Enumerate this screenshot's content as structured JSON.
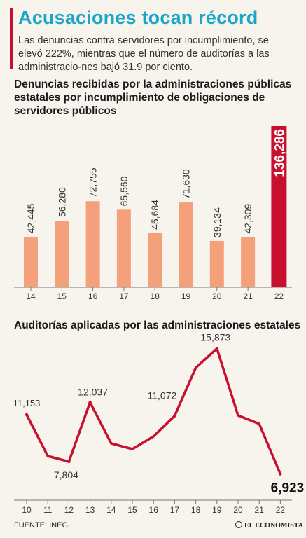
{
  "title": "Acusaciones tocan récord",
  "subtitle": "Las denuncias contra servidores por incumplimiento, se elevó 222%, mientras que el número de auditorías a las administracio-nes bajó 31.9 por ciento.",
  "footer": {
    "source": "FUENTE: INEGI",
    "logo": "EL ECONOMISTA"
  },
  "colors": {
    "title": "#1ba6c9",
    "bar": "#f4a07a",
    "highlight": "#c8102e",
    "line": "#c8102e"
  },
  "chart_data": [
    {
      "type": "bar",
      "title": "Denuncias recibidas por la administraciones públicas estatales por incumplimiento de obligaciones de servidores públicos",
      "categories": [
        "14",
        "15",
        "16",
        "17",
        "18",
        "19",
        "20",
        "21",
        "22"
      ],
      "values": [
        42445,
        56280,
        72755,
        65560,
        45684,
        71630,
        39134,
        42309,
        136286
      ],
      "labels": [
        "42,445",
        "56,280",
        "72,755",
        "65,560",
        "45,684",
        "71,630",
        "39,134",
        "42,309",
        "136,286"
      ],
      "highlight_index": 8,
      "ylim": [
        0,
        136286
      ]
    },
    {
      "type": "line",
      "title": "Auditorías aplicadas por las administraciones estatales",
      "x": [
        "10",
        "11",
        "12",
        "13",
        "14",
        "15",
        "16",
        "17",
        "18",
        "19",
        "20",
        "21",
        "22"
      ],
      "values": [
        11153,
        8200,
        7804,
        12037,
        9100,
        8700,
        9600,
        11072,
        14500,
        15873,
        11100,
        10500,
        6923
      ],
      "labeled_points": [
        {
          "index": 0,
          "label": "11,153"
        },
        {
          "index": 2,
          "label": "7,804"
        },
        {
          "index": 3,
          "label": "12,037"
        },
        {
          "index": 7,
          "label": "11,072"
        },
        {
          "index": 9,
          "label": "15,873"
        },
        {
          "index": 12,
          "label": "6,923"
        }
      ]
    }
  ]
}
